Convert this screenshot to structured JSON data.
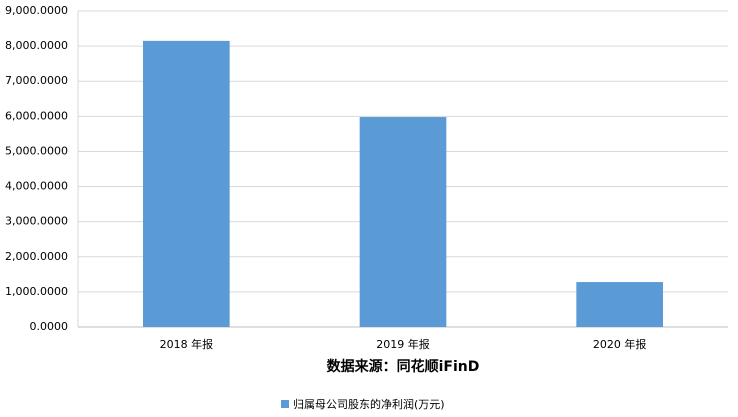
{
  "chart_data": {
    "type": "bar",
    "categories": [
      "2018 年报",
      "2019 年报",
      "2020 年报"
    ],
    "series": [
      {
        "name": "归属母公司股东的净利润(万元)",
        "color": "#5b9bd5",
        "values": [
          8150,
          5980,
          1280
        ]
      }
    ],
    "x_axis_title": "数据来源：同花顺iFinD",
    "ylim": [
      0,
      9000
    ],
    "yticks": [
      {
        "value": 0,
        "label": "0.0000"
      },
      {
        "value": 1000,
        "label": "1,000.0000"
      },
      {
        "value": 2000,
        "label": "2,000.0000"
      },
      {
        "value": 3000,
        "label": "3,000.0000"
      },
      {
        "value": 4000,
        "label": "4,000.0000"
      },
      {
        "value": 5000,
        "label": "5,000.0000"
      },
      {
        "value": 6000,
        "label": "6,000.0000"
      },
      {
        "value": 7000,
        "label": "7,000.0000"
      },
      {
        "value": 8000,
        "label": "8,000.0000"
      },
      {
        "value": 9000,
        "label": "9,000.0000"
      }
    ],
    "grid": true,
    "legend": "bottom"
  }
}
